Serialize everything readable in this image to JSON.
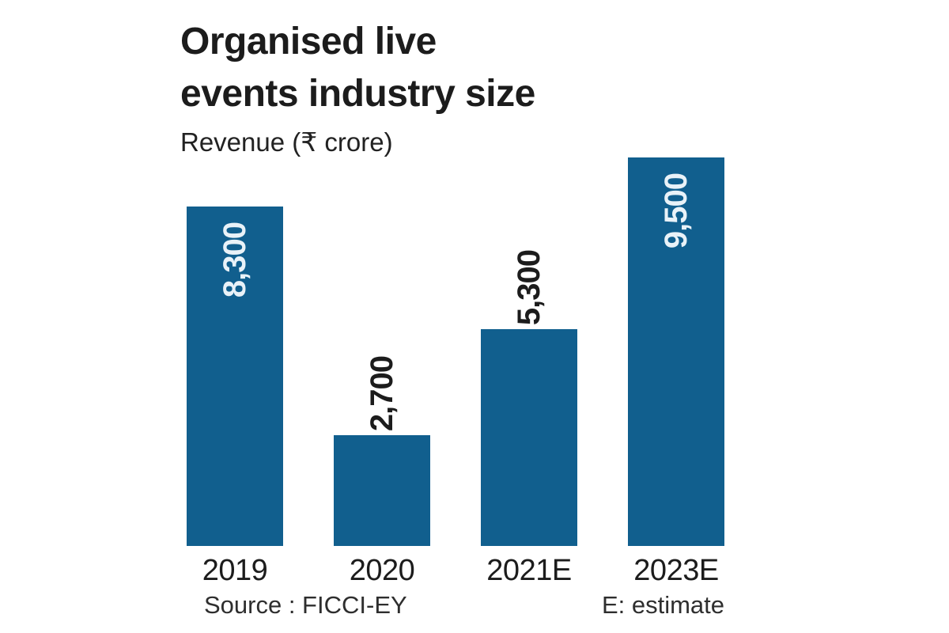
{
  "chart_data": {
    "type": "bar",
    "title": "Organised live events industry size",
    "title_lines": [
      "Organised live",
      "events industry size"
    ],
    "subtitle": "Revenue (₹ crore)",
    "categories": [
      "2019",
      "2020",
      "2021E",
      "2023E"
    ],
    "values": [
      8300,
      2700,
      5300,
      9500
    ],
    "value_labels": [
      "8,300",
      "2,700",
      "5,300",
      "9,500"
    ],
    "source": "Source : FICCI-EY",
    "note": "E: estimate",
    "ylim": [
      0,
      9700
    ],
    "grid": false,
    "legend": false,
    "bar_color": "#115f8e",
    "inside_label_color": "#e9f2f8",
    "outside_label_color": "#1c1c1c"
  }
}
